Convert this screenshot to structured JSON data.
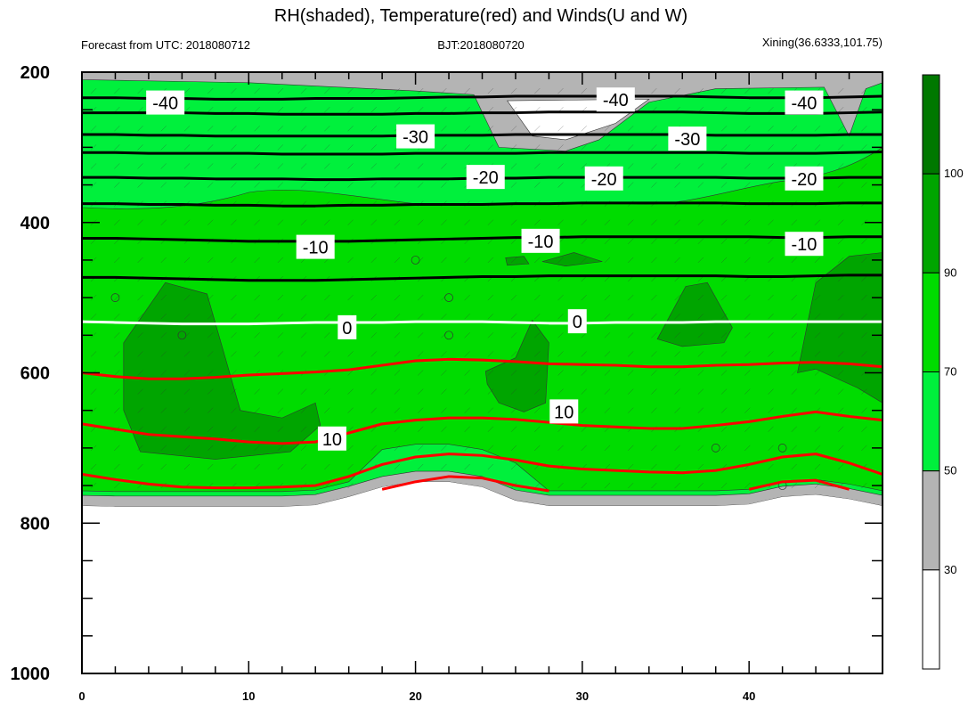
{
  "title": "RH(shaded), Temperature(red) and Winds(U and W)",
  "subtitles": {
    "left": "Forecast from UTC: 2018080712",
    "center": "BJT:2018080720",
    "right": "Xining(36.6333,101.75)"
  },
  "colors": {
    "rh_30_50": "#b4b4b4",
    "rh_50_70": "#00f03c",
    "rh_70_90": "#00dc00",
    "rh_90_100": "#00a500",
    "rh_100_plus": "#007800",
    "rh_below_30": "#ffffff",
    "temp_positive": "#ff0000",
    "temp_negative": "#000000",
    "temp_zero": "#ffffff"
  },
  "chart_data": {
    "type": "heatmap",
    "x": [
      0,
      2,
      4,
      6,
      8,
      10,
      12,
      14,
      16,
      18,
      20,
      22,
      24,
      26,
      28,
      30,
      32,
      34,
      36,
      38,
      40,
      42,
      44,
      46,
      48
    ],
    "xlim": [
      0,
      48
    ],
    "ylim": [
      1000,
      200
    ],
    "x_ticks": [
      "0",
      "10",
      "20",
      "30",
      "40"
    ],
    "x_tick_values": [
      0,
      10,
      20,
      30,
      40
    ],
    "y_ticks": [
      "200",
      "400",
      "600",
      "800",
      "1000"
    ],
    "y_tick_values": [
      200,
      400,
      600,
      800,
      1000
    ],
    "surface_pressure": [
      777,
      778,
      778,
      778,
      778,
      778,
      778,
      776,
      765,
      752,
      745,
      745,
      752,
      770,
      777,
      777,
      777,
      777,
      777,
      777,
      775,
      765,
      762,
      768,
      777
    ],
    "rh_colorbar": {
      "labels": [
        "30",
        "50",
        "70",
        "90",
        "100"
      ],
      "colors": [
        "#ffffff",
        "#b4b4b4",
        "#00f03c",
        "#00dc00",
        "#00a500",
        "#007800"
      ]
    },
    "temperature_contours": [
      {
        "level": -40,
        "p": [
          234,
          234,
          235,
          235,
          236,
          236,
          236,
          235,
          235,
          235,
          234,
          233,
          233,
          232,
          232,
          232,
          232,
          232,
          232,
          233,
          234,
          234,
          234,
          233,
          232
        ]
      },
      {
        "level": -40,
        "p": [
          254,
          254,
          254,
          254,
          255,
          255,
          256,
          256,
          256,
          256,
          255,
          255,
          254,
          254,
          253,
          253,
          253,
          253,
          253,
          254,
          255,
          255,
          255,
          254,
          253
        ]
      },
      {
        "level": -30,
        "p": [
          283,
          283,
          284,
          284,
          285,
          285,
          285,
          285,
          285,
          285,
          284,
          284,
          284,
          283,
          283,
          283,
          283,
          283,
          283,
          284,
          284,
          284,
          284,
          283,
          283
        ]
      },
      {
        "level": -30,
        "p": [
          307,
          307,
          308,
          308,
          308,
          308,
          309,
          309,
          309,
          309,
          308,
          308,
          308,
          308,
          307,
          307,
          307,
          307,
          307,
          307,
          308,
          308,
          308,
          307,
          306
        ]
      },
      {
        "level": -20,
        "p": [
          340,
          340,
          341,
          341,
          342,
          342,
          342,
          343,
          343,
          342,
          342,
          342,
          341,
          341,
          340,
          340,
          340,
          340,
          340,
          340,
          341,
          341,
          341,
          340,
          340
        ]
      },
      {
        "level": -20,
        "p": [
          375,
          375,
          376,
          376,
          377,
          377,
          378,
          378,
          377,
          377,
          376,
          376,
          376,
          375,
          375,
          374,
          374,
          374,
          374,
          374,
          375,
          375,
          375,
          374,
          374
        ]
      },
      {
        "level": -10,
        "p": [
          421,
          421,
          422,
          423,
          424,
          425,
          425,
          425,
          425,
          424,
          423,
          422,
          421,
          420,
          420,
          419,
          419,
          419,
          419,
          419,
          419,
          420,
          420,
          419,
          419
        ]
      },
      {
        "level": -10,
        "p": [
          473,
          473,
          474,
          475,
          476,
          477,
          477,
          477,
          476,
          475,
          474,
          473,
          472,
          472,
          471,
          471,
          471,
          471,
          471,
          471,
          472,
          472,
          471,
          470,
          470
        ]
      },
      {
        "level": 0,
        "p": [
          532,
          533,
          534,
          535,
          535,
          535,
          534,
          533,
          533,
          533,
          532,
          532,
          532,
          533,
          534,
          534,
          533,
          533,
          533,
          532,
          532,
          532,
          532,
          532,
          532
        ]
      },
      {
        "level": 10,
        "p": [
          600,
          605,
          608,
          608,
          606,
          603,
          601,
          599,
          596,
          590,
          584,
          582,
          583,
          585,
          588,
          589,
          590,
          592,
          592,
          590,
          589,
          587,
          586,
          588,
          592
        ]
      },
      {
        "level": 10,
        "p": [
          668,
          675,
          682,
          685,
          688,
          692,
          694,
          692,
          680,
          668,
          663,
          660,
          660,
          662,
          666,
          670,
          672,
          674,
          674,
          670,
          665,
          658,
          652,
          658,
          663
        ]
      },
      {
        "level": 10,
        "p": [
          735,
          742,
          748,
          752,
          753,
          753,
          752,
          750,
          738,
          722,
          712,
          708,
          710,
          716,
          724,
          728,
          730,
          732,
          733,
          730,
          722,
          712,
          708,
          720,
          735
        ]
      },
      {
        "level": 10,
        "p": [
          null,
          null,
          null,
          null,
          null,
          null,
          null,
          null,
          null,
          755,
          745,
          738,
          740,
          750,
          757,
          null,
          null,
          null,
          null,
          null,
          755,
          745,
          743,
          755,
          null
        ]
      }
    ],
    "contour_labels": [
      {
        "text": "-40",
        "x": 5,
        "p": 241
      },
      {
        "text": "-40",
        "x": 32,
        "p": 237
      },
      {
        "text": "-40",
        "x": 43.3,
        "p": 241
      },
      {
        "text": "-30",
        "x": 20,
        "p": 286
      },
      {
        "text": "-30",
        "x": 36.3,
        "p": 289
      },
      {
        "text": "-20",
        "x": 24.2,
        "p": 340
      },
      {
        "text": "-20",
        "x": 31.3,
        "p": 342
      },
      {
        "text": "-20",
        "x": 43.3,
        "p": 342
      },
      {
        "text": "-10",
        "x": 14,
        "p": 433
      },
      {
        "text": "-10",
        "x": 27.5,
        "p": 425
      },
      {
        "text": "-10",
        "x": 43.3,
        "p": 429
      },
      {
        "text": "0",
        "x": 15.9,
        "p": 540
      },
      {
        "text": "0",
        "x": 29.7,
        "p": 532
      },
      {
        "text": "10",
        "x": 15,
        "p": 688
      },
      {
        "text": "10",
        "x": 28.9,
        "p": 652
      }
    ]
  }
}
